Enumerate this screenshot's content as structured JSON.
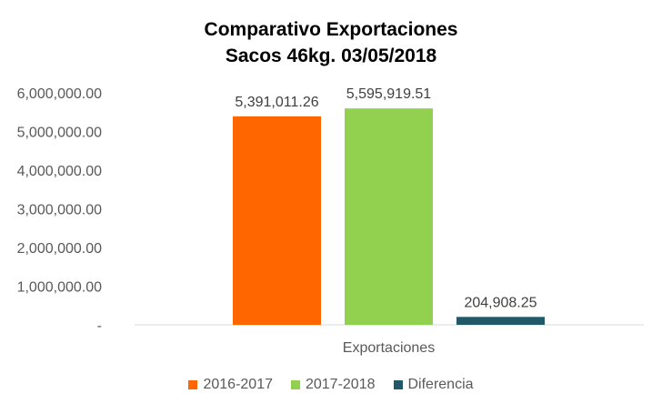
{
  "chart_data": {
    "type": "bar",
    "title": "Comparativo  Exportaciones",
    "subtitle": "Sacos 46kg. 03/05/2018",
    "categories": [
      "Exportaciones"
    ],
    "series": [
      {
        "name": "2016-2017",
        "values": [
          5391011.26
        ],
        "color": "#FF6600",
        "label": "5,391,011.26"
      },
      {
        "name": "2017-2018",
        "values": [
          5595919.51
        ],
        "color": "#92D050",
        "label": "5,595,919.51"
      },
      {
        "name": "Diferencia",
        "values": [
          204908.25
        ],
        "color": "#215968",
        "label": "204,908.25"
      }
    ],
    "ylim": [
      0,
      6000000
    ],
    "yticks": [
      0,
      1000000,
      2000000,
      3000000,
      4000000,
      5000000,
      6000000
    ],
    "ytick_labels": [
      "-",
      "1,000,000.00",
      "2,000,000.00",
      "3,000,000.00",
      "4,000,000.00",
      "5,000,000.00",
      "6,000,000.00"
    ],
    "grid": false,
    "legend_position": "bottom"
  }
}
